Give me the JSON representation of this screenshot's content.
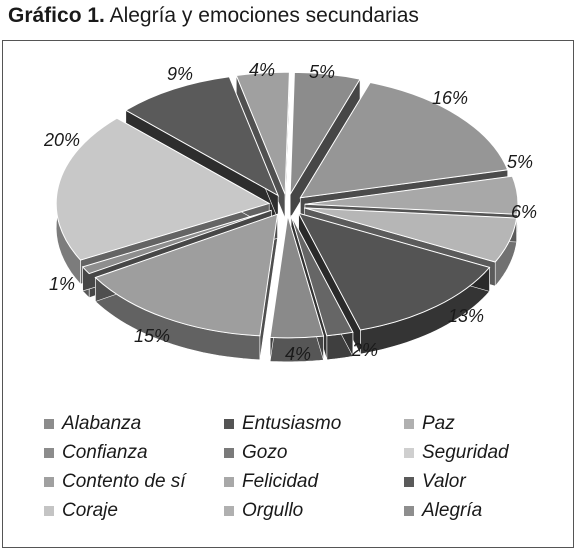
{
  "title": {
    "bold": "Gráfico 1.",
    "text": "Alegría y emociones secundarias"
  },
  "chart_data": {
    "type": "pie",
    "categories": [
      "Alabanza",
      "Entusiasmo",
      "Paz",
      "Confianza",
      "Gozo",
      "Seguridad",
      "Contento de sí",
      "Felicidad",
      "Valor",
      "Coraje",
      "Orgullo",
      "Alegría"
    ],
    "values": [
      5,
      16,
      5,
      6,
      13,
      2,
      4,
      15,
      1,
      20,
      9,
      4
    ],
    "value_labels": [
      "5%",
      "16%",
      "5%",
      "6%",
      "13%",
      "2%",
      "4%",
      "15%",
      "1%",
      "20%",
      "9%",
      "4%"
    ],
    "colors": [
      "#8c8c8c",
      "#969696",
      "#a8a8a8",
      "#b6b6b6",
      "#545454",
      "#666666",
      "#8a8a8a",
      "#9e9e9e",
      "#8e8e8e",
      "#c8c8c8",
      "#5a5a5a",
      "#a0a0a0"
    ],
    "legend": {
      "placement": "bottom",
      "entries": [
        {
          "label": "Alabanza",
          "color": "#8c8c8c"
        },
        {
          "label": "Entusiasmo",
          "color": "#545454"
        },
        {
          "label": "Paz",
          "color": "#b0b0b0"
        },
        {
          "label": "Confianza",
          "color": "#8c8c8c"
        },
        {
          "label": "Gozo",
          "color": "#7a7a7a"
        },
        {
          "label": "Seguridad",
          "color": "#cfcfcf"
        },
        {
          "label": "Contento de sí",
          "color": "#a0a0a0"
        },
        {
          "label": "Felicidad",
          "color": "#a8a8a8"
        },
        {
          "label": "Valor",
          "color": "#5a5a5a"
        },
        {
          "label": "Coraje",
          "color": "#c4c4c4"
        },
        {
          "label": "Orgullo",
          "color": "#b0b0b0"
        },
        {
          "label": "Alegría",
          "color": "#8e8e8e"
        }
      ]
    }
  }
}
